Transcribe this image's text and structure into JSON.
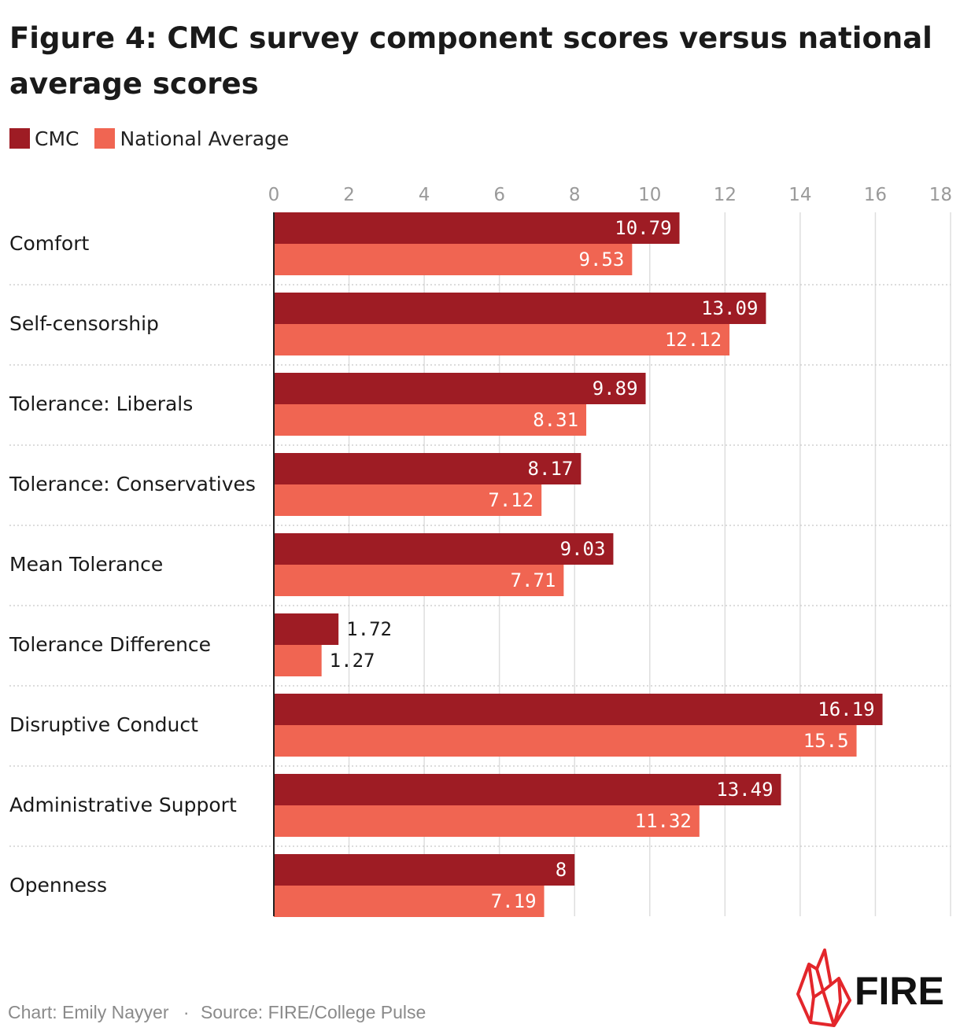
{
  "title": "Figure 4: CMC survey component scores versus national average scores",
  "legend": [
    {
      "label": "CMC",
      "color": "#9e1c24"
    },
    {
      "label": "National Average",
      "color": "#f06552"
    }
  ],
  "chart_data": {
    "type": "bar",
    "orientation": "horizontal",
    "categories": [
      "Comfort",
      "Self-censorship",
      "Tolerance: Liberals",
      "Tolerance: Conservatives",
      "Mean Tolerance",
      "Tolerance Difference",
      "Disruptive Conduct",
      "Administrative Support",
      "Openness"
    ],
    "series": [
      {
        "name": "CMC",
        "color": "#9e1c24",
        "values": [
          10.79,
          13.09,
          9.89,
          8.17,
          9.03,
          1.72,
          16.19,
          13.49,
          8
        ]
      },
      {
        "name": "National Average",
        "color": "#f06552",
        "values": [
          9.53,
          12.12,
          8.31,
          7.12,
          7.71,
          1.27,
          15.5,
          11.32,
          7.19
        ]
      }
    ],
    "xlim": [
      0,
      18
    ],
    "xticks": [
      0,
      2,
      4,
      6,
      8,
      10,
      12,
      14,
      16,
      18
    ],
    "grid": true,
    "legend_position": "top-left"
  },
  "footer": {
    "credit": "Chart: Emily Nayyer",
    "separator": "·",
    "source": "Source: FIRE/College Pulse"
  },
  "logo": {
    "text": "FIRE",
    "color": "#e3262b"
  }
}
